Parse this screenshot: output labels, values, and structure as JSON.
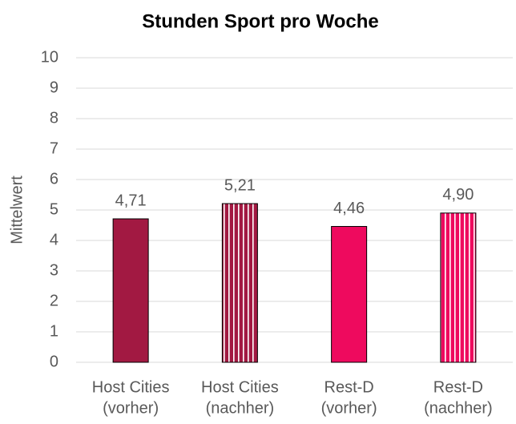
{
  "chart_data": {
    "type": "bar",
    "title": "Stunden Sport pro Woche",
    "y_label": "Mittelwert",
    "categories": [
      [
        "Host Cities",
        "(vorher)"
      ],
      [
        "Host Cities",
        "(nachher)"
      ],
      [
        "Rest-D",
        "(vorher)"
      ],
      [
        "Rest-D",
        "(nachher)"
      ]
    ],
    "values": [
      4.71,
      5.21,
      4.46,
      4.9
    ],
    "value_labels": [
      "4,71",
      "5,21",
      "4,46",
      "4,90"
    ],
    "colors": [
      "#a21942",
      "#a21942",
      "#ee0a5e",
      "#ee0a5e"
    ],
    "striped": [
      false,
      true,
      false,
      true
    ],
    "ylim": [
      0,
      10
    ],
    "yticks": [
      0,
      1,
      2,
      3,
      4,
      5,
      6,
      7,
      8,
      9,
      10
    ],
    "grid": true
  }
}
